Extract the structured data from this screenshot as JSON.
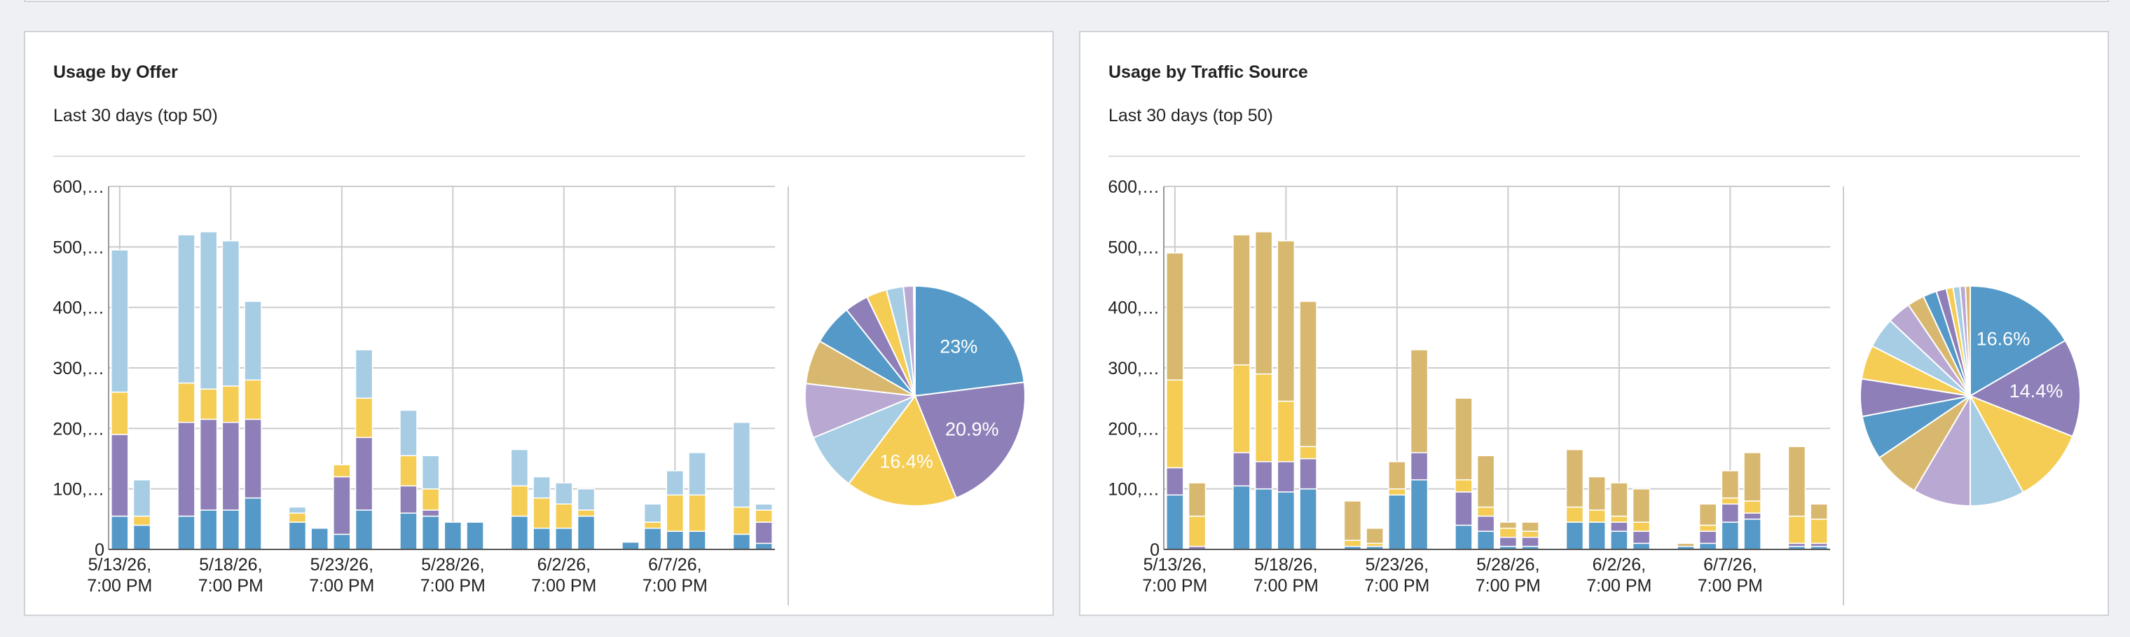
{
  "chart_data": [
    {
      "type": "stacked-bar",
      "title": "Usage by Offer",
      "subtitle": "Last 30 days (top 50)",
      "categories": [
        "5/13/26,\n7:00 PM",
        null,
        null,
        null,
        null,
        "5/18/26,\n7:00 PM",
        null,
        null,
        null,
        null,
        "5/23/26,\n7:00 PM",
        null,
        null,
        null,
        null,
        "5/28/26,\n7:00 PM",
        null,
        null,
        null,
        null,
        "6/2/26,\n7:00 PM",
        null,
        null,
        null,
        null,
        "6/7/26,\n7:00 PM",
        null,
        null,
        null,
        null
      ],
      "series": [
        {
          "color": "#5499c7",
          "values": [
            55,
            40,
            0,
            55,
            65,
            65,
            85,
            0,
            45,
            35,
            25,
            65,
            0,
            60,
            55,
            45,
            45,
            0,
            55,
            35,
            35,
            55,
            0,
            12,
            35,
            30,
            30,
            0,
            25,
            10
          ]
        },
        {
          "color": "#8e7fb8",
          "values": [
            135,
            0,
            0,
            155,
            150,
            145,
            130,
            0,
            0,
            0,
            95,
            120,
            0,
            45,
            10,
            0,
            0,
            0,
            0,
            0,
            0,
            0,
            0,
            0,
            0,
            0,
            0,
            0,
            0,
            35
          ]
        },
        {
          "color": "#f5cd55",
          "values": [
            70,
            15,
            0,
            65,
            50,
            60,
            65,
            0,
            15,
            0,
            20,
            65,
            0,
            50,
            35,
            0,
            0,
            0,
            50,
            50,
            40,
            10,
            0,
            0,
            10,
            60,
            60,
            0,
            45,
            20
          ]
        },
        {
          "color": "#a6cde3",
          "values": [
            235,
            60,
            0,
            245,
            260,
            240,
            130,
            0,
            10,
            0,
            0,
            80,
            0,
            75,
            55,
            0,
            0,
            0,
            60,
            35,
            35,
            35,
            0,
            0,
            30,
            40,
            70,
            0,
            140,
            10
          ]
        }
      ],
      "ylim": [
        0,
        600
      ],
      "yticks": [
        0,
        {
          "value": 100,
          "label": "100,…"
        },
        {
          "value": 200,
          "label": "200,…"
        },
        {
          "value": 300,
          "label": "300,…"
        },
        {
          "value": 400,
          "label": "400,…"
        },
        {
          "value": 500,
          "label": "500,…"
        },
        {
          "value": 600,
          "label": "600,…"
        }
      ],
      "grid": true
    },
    {
      "type": "pie",
      "values": [
        23,
        20.9,
        16.4,
        8.5,
        8,
        6.5,
        6,
        3.5,
        3,
        2.5,
        1.5,
        0.2
      ],
      "value_labels": [
        "23%",
        "20.9%",
        "16.4%",
        null,
        null,
        null,
        null,
        null,
        null,
        null,
        null,
        null
      ],
      "colors": [
        "#5499c7",
        "#8e7fb8",
        "#f5cd55",
        "#a6cde3",
        "#b9a8d2",
        "#d8b86e",
        "#5499c7",
        "#8e7fb8",
        "#f5cd55",
        "#a6cde3",
        "#b9a8d2",
        "#d8b86e"
      ]
    },
    {
      "type": "stacked-bar",
      "title": "Usage by Traffic Source",
      "subtitle": "Last 30 days (top 50)",
      "categories": [
        "5/13/26,\n7:00 PM",
        null,
        null,
        null,
        null,
        "5/18/26,\n7:00 PM",
        null,
        null,
        null,
        null,
        "5/23/26,\n7:00 PM",
        null,
        null,
        null,
        null,
        "5/28/26,\n7:00 PM",
        null,
        null,
        null,
        null,
        "6/2/26,\n7:00 PM",
        null,
        null,
        null,
        null,
        "6/7/26,\n7:00 PM",
        null,
        null,
        null,
        null
      ],
      "series": [
        {
          "color": "#5499c7",
          "values": [
            90,
            0,
            0,
            105,
            100,
            95,
            100,
            0,
            5,
            5,
            90,
            115,
            0,
            40,
            30,
            5,
            5,
            0,
            45,
            45,
            30,
            10,
            0,
            5,
            10,
            45,
            50,
            0,
            5,
            5
          ]
        },
        {
          "color": "#8e7fb8",
          "values": [
            45,
            5,
            0,
            55,
            45,
            50,
            50,
            0,
            0,
            0,
            0,
            45,
            0,
            55,
            25,
            15,
            15,
            0,
            0,
            0,
            15,
            20,
            0,
            0,
            20,
            30,
            10,
            0,
            5,
            5
          ]
        },
        {
          "color": "#f5cd55",
          "values": [
            145,
            50,
            0,
            145,
            145,
            100,
            20,
            0,
            10,
            5,
            10,
            0,
            0,
            20,
            15,
            15,
            10,
            0,
            25,
            20,
            10,
            15,
            0,
            0,
            10,
            10,
            20,
            0,
            45,
            40
          ]
        },
        {
          "color": "#d8b86e",
          "values": [
            210,
            55,
            0,
            215,
            235,
            265,
            240,
            0,
            65,
            25,
            45,
            170,
            0,
            135,
            85,
            10,
            15,
            0,
            95,
            55,
            55,
            55,
            0,
            5,
            35,
            45,
            80,
            0,
            115,
            25
          ]
        }
      ],
      "ylim": [
        0,
        600
      ],
      "yticks": [
        0,
        {
          "value": 100,
          "label": "100,…"
        },
        {
          "value": 200,
          "label": "200,…"
        },
        {
          "value": 300,
          "label": "300,…"
        },
        {
          "value": 400,
          "label": "400,…"
        },
        {
          "value": 500,
          "label": "500,…"
        },
        {
          "value": 600,
          "label": "600,…"
        }
      ],
      "grid": true
    },
    {
      "type": "pie",
      "values": [
        16.6,
        14.4,
        11,
        8,
        8.5,
        7,
        6.5,
        5.5,
        5,
        4.5,
        3.5,
        2.5,
        2,
        1.5,
        1,
        1,
        0.8,
        0.7
      ],
      "value_labels": [
        "16.6%",
        "14.4%",
        null,
        null,
        null,
        null,
        null,
        null,
        null,
        null,
        null,
        null,
        null,
        null,
        null,
        null,
        null,
        null
      ],
      "colors": [
        "#5499c7",
        "#8e7fb8",
        "#f5cd55",
        "#a6cde3",
        "#b9a8d2",
        "#d8b86e",
        "#5499c7",
        "#8e7fb8",
        "#f5cd55",
        "#a6cde3",
        "#b9a8d2",
        "#d8b86e",
        "#5499c7",
        "#8e7fb8",
        "#f5cd55",
        "#a6cde3",
        "#b9a8d2",
        "#d8b86e"
      ]
    }
  ]
}
